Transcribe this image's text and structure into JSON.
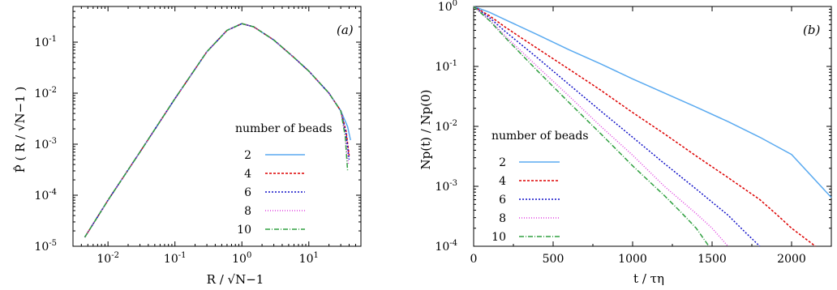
{
  "chart_data": [
    {
      "panel": "(a)",
      "type": "line",
      "xlabel": "R / √N−1",
      "ylabel": "P̂ ( R / √N−1 )",
      "xscale": "log",
      "yscale": "log",
      "xlim": [
        0.003,
        60
      ],
      "ylim": [
        1e-05,
        0.5
      ],
      "x_ticks": [
        {
          "value": 0.01,
          "label": "10",
          "exp": "-2"
        },
        {
          "value": 0.1,
          "label": "10",
          "exp": "-1"
        },
        {
          "value": 1,
          "label": "10",
          "exp": "0"
        },
        {
          "value": 10,
          "label": "10",
          "exp": "1"
        }
      ],
      "y_ticks": [
        {
          "value": 1e-05,
          "label": "10",
          "exp": "-5"
        },
        {
          "value": 0.0001,
          "label": "10",
          "exp": "-4"
        },
        {
          "value": 0.001,
          "label": "10",
          "exp": "-3"
        },
        {
          "value": 0.01,
          "label": "10",
          "exp": "-2"
        },
        {
          "value": 0.1,
          "label": "10",
          "exp": "-1"
        }
      ],
      "legend_title": "number of beads",
      "legend_position": "center-right",
      "series": [
        {
          "name": "2",
          "color": "#5aaaf0",
          "dash": "",
          "x": [
            0.0045,
            0.01,
            0.03,
            0.1,
            0.3,
            0.6,
            1.0,
            1.5,
            3,
            6,
            10,
            20,
            30,
            38,
            42
          ],
          "y": [
            1.5e-05,
            8e-05,
            0.0007,
            0.0078,
            0.065,
            0.17,
            0.23,
            0.2,
            0.11,
            0.05,
            0.027,
            0.01,
            0.0045,
            0.0022,
            0.0012
          ]
        },
        {
          "name": "4",
          "color": "#dd0000",
          "dash": "3,2",
          "x": [
            0.0045,
            0.01,
            0.03,
            0.1,
            0.3,
            0.6,
            1.0,
            1.5,
            3,
            6,
            10,
            20,
            30,
            36,
            40
          ],
          "y": [
            1.5e-05,
            8e-05,
            0.0007,
            0.0078,
            0.065,
            0.17,
            0.23,
            0.2,
            0.11,
            0.05,
            0.027,
            0.01,
            0.0045,
            0.0018,
            0.0006
          ]
        },
        {
          "name": "6",
          "color": "#1010c8",
          "dash": "2,2",
          "x": [
            0.0045,
            0.01,
            0.03,
            0.1,
            0.3,
            0.6,
            1.0,
            1.5,
            3,
            6,
            10,
            20,
            30,
            36,
            40
          ],
          "y": [
            1.5e-05,
            8e-05,
            0.0007,
            0.0078,
            0.065,
            0.17,
            0.23,
            0.2,
            0.11,
            0.05,
            0.027,
            0.01,
            0.0045,
            0.0016,
            0.0005
          ]
        },
        {
          "name": "8",
          "color": "#e040e0",
          "dash": "1,2",
          "x": [
            0.0045,
            0.01,
            0.03,
            0.1,
            0.3,
            0.6,
            1.0,
            1.5,
            3,
            6,
            10,
            20,
            30,
            35,
            39
          ],
          "y": [
            1.5e-05,
            8e-05,
            0.0007,
            0.0078,
            0.065,
            0.17,
            0.23,
            0.2,
            0.11,
            0.05,
            0.027,
            0.01,
            0.0045,
            0.0015,
            0.0004
          ]
        },
        {
          "name": "10",
          "color": "#30a040",
          "dash": "6,2,1,2",
          "x": [
            0.0045,
            0.01,
            0.03,
            0.1,
            0.3,
            0.6,
            1.0,
            1.5,
            3,
            6,
            10,
            20,
            30,
            35,
            38
          ],
          "y": [
            1.5e-05,
            8e-05,
            0.0007,
            0.0078,
            0.065,
            0.17,
            0.23,
            0.2,
            0.11,
            0.05,
            0.027,
            0.01,
            0.0045,
            0.0014,
            0.0003
          ]
        }
      ]
    },
    {
      "panel": "(b)",
      "type": "line",
      "xlabel": "t / τη",
      "ylabel": "Np(t) / Np(0)",
      "xscale": "linear",
      "yscale": "log",
      "xlim": [
        0,
        2250
      ],
      "ylim": [
        0.0001,
        1
      ],
      "x_ticks": [
        {
          "value": 0,
          "label": "0",
          "exp": ""
        },
        {
          "value": 500,
          "label": "500",
          "exp": ""
        },
        {
          "value": 1000,
          "label": "1000",
          "exp": ""
        },
        {
          "value": 1500,
          "label": "1500",
          "exp": ""
        },
        {
          "value": 2000,
          "label": "2000",
          "exp": ""
        }
      ],
      "y_ticks": [
        {
          "value": 0.0001,
          "label": "10",
          "exp": "-4"
        },
        {
          "value": 0.001,
          "label": "10",
          "exp": "-3"
        },
        {
          "value": 0.01,
          "label": "10",
          "exp": "-2"
        },
        {
          "value": 0.1,
          "label": "10",
          "exp": "-1"
        },
        {
          "value": 1,
          "label": "10",
          "exp": "0"
        }
      ],
      "legend_title": "number of beads",
      "legend_position": "left",
      "series": [
        {
          "name": "2",
          "color": "#5aaaf0",
          "dash": "",
          "x": [
            0,
            100,
            200,
            400,
            600,
            800,
            1000,
            1200,
            1400,
            1600,
            1800,
            2000,
            2250
          ],
          "y": [
            1,
            0.8,
            0.6,
            0.34,
            0.19,
            0.11,
            0.062,
            0.036,
            0.021,
            0.012,
            0.0066,
            0.0034,
            0.00065
          ]
        },
        {
          "name": "4",
          "color": "#dd0000",
          "dash": "3,2",
          "x": [
            0,
            100,
            200,
            400,
            600,
            800,
            1000,
            1200,
            1400,
            1600,
            1800,
            1900,
            2000,
            2150
          ],
          "y": [
            1,
            0.7,
            0.45,
            0.2,
            0.09,
            0.04,
            0.017,
            0.0075,
            0.0032,
            0.0014,
            0.0006,
            0.00035,
            0.0002,
            0.0001
          ]
        },
        {
          "name": "6",
          "color": "#1010c8",
          "dash": "2,2",
          "x": [
            0,
            100,
            200,
            400,
            600,
            800,
            1000,
            1200,
            1400,
            1600,
            1700,
            1800
          ],
          "y": [
            1,
            0.65,
            0.38,
            0.14,
            0.05,
            0.018,
            0.0066,
            0.0024,
            0.0009,
            0.00033,
            0.00018,
            0.0001
          ]
        },
        {
          "name": "8",
          "color": "#e040e0",
          "dash": "1,2",
          "x": [
            0,
            100,
            200,
            400,
            600,
            800,
            1000,
            1200,
            1400,
            1500,
            1600
          ],
          "y": [
            1,
            0.6,
            0.32,
            0.1,
            0.032,
            0.01,
            0.0033,
            0.001,
            0.00035,
            0.0002,
            0.0001
          ]
        },
        {
          "name": "10",
          "color": "#30a040",
          "dash": "6,2,1,2",
          "x": [
            0,
            100,
            200,
            400,
            600,
            800,
            1000,
            1200,
            1300,
            1400,
            1480
          ],
          "y": [
            1,
            0.58,
            0.3,
            0.085,
            0.025,
            0.0075,
            0.0022,
            0.0007,
            0.00038,
            0.0002,
            0.0001
          ]
        }
      ]
    }
  ]
}
